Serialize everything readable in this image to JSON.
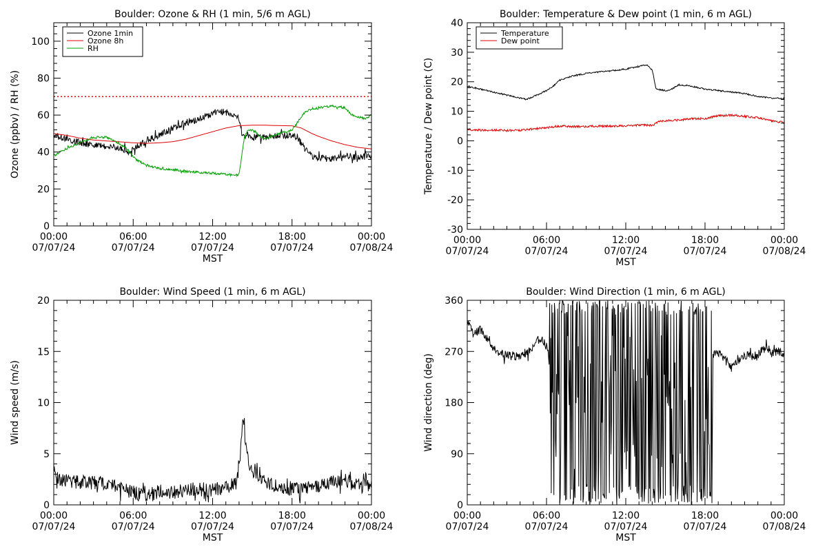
{
  "colors": {
    "black": "#000000",
    "red": "#e00000",
    "green": "#00a000",
    "background": "#ffffff"
  },
  "time_axis": {
    "ticks": [
      "00:00",
      "06:00",
      "12:00",
      "18:00",
      "00:00"
    ],
    "dates": [
      "07/07/24",
      "07/07/24",
      "07/07/24",
      "07/07/24",
      "07/08/24"
    ],
    "label": "MST"
  },
  "chart_data": [
    {
      "type": "line",
      "title": "Boulder: Ozone & RH (1 min, 5/6 m AGL)",
      "xlabel": "MST",
      "ylabel": "Ozone (ppbv) / RH (%)",
      "xlim_hours": [
        0,
        24
      ],
      "ylim": [
        0,
        110
      ],
      "yticks": [
        0,
        20,
        40,
        60,
        80,
        100
      ],
      "legend_position": "top-left",
      "reference_line": {
        "value": 70,
        "style": "dotted",
        "color": "#e00000"
      },
      "series": [
        {
          "name": "Ozone 1min",
          "color": "#000000",
          "noise": 1.8,
          "points": [
            [
              0,
              49
            ],
            [
              1,
              47
            ],
            [
              2,
              45
            ],
            [
              3,
              44
            ],
            [
              4,
              43
            ],
            [
              5,
              42
            ],
            [
              5.8,
              40
            ],
            [
              6.5,
              44
            ],
            [
              7,
              46
            ],
            [
              8,
              49
            ],
            [
              9,
              53
            ],
            [
              10,
              56
            ],
            [
              11,
              58
            ],
            [
              12,
              61
            ],
            [
              12.6,
              62
            ],
            [
              13,
              61.5
            ],
            [
              13.5,
              61
            ],
            [
              14,
              58
            ],
            [
              14.2,
              49
            ],
            [
              15,
              48
            ],
            [
              16,
              48
            ],
            [
              17,
              49
            ],
            [
              18,
              49
            ],
            [
              18.5,
              47
            ],
            [
              19,
              41
            ],
            [
              19.5,
              38
            ],
            [
              20,
              37
            ],
            [
              21,
              36
            ],
            [
              22,
              38
            ],
            [
              23,
              37
            ],
            [
              23.5,
              38
            ],
            [
              24,
              37
            ]
          ]
        },
        {
          "name": "Ozone 8h",
          "color": "#e00000",
          "noise": 0,
          "points": [
            [
              0,
              50
            ],
            [
              1,
              49
            ],
            [
              2,
              47.5
            ],
            [
              3,
              46.5
            ],
            [
              4,
              46
            ],
            [
              5,
              45.5
            ],
            [
              6,
              45
            ],
            [
              7,
              44.7
            ],
            [
              8,
              45
            ],
            [
              9,
              45.6
            ],
            [
              10,
              47
            ],
            [
              11,
              49
            ],
            [
              12,
              51
            ],
            [
              13,
              53
            ],
            [
              14,
              54.3
            ],
            [
              15,
              54.5
            ],
            [
              16,
              54.5
            ],
            [
              17,
              54.3
            ],
            [
              18,
              54.2
            ],
            [
              18.7,
              53
            ],
            [
              19.5,
              50
            ],
            [
              20,
              48.5
            ],
            [
              21,
              46
            ],
            [
              22,
              44
            ],
            [
              23,
              42.5
            ],
            [
              24,
              41.7
            ]
          ]
        },
        {
          "name": "RH",
          "color": "#00a000",
          "noise": 0.6,
          "points": [
            [
              0,
              38
            ],
            [
              1,
              42
            ],
            [
              2,
              45
            ],
            [
              3,
              48
            ],
            [
              4,
              48
            ],
            [
              4.8,
              45
            ],
            [
              5.5,
              42
            ],
            [
              6.2,
              36
            ],
            [
              7,
              33
            ],
            [
              8,
              31
            ],
            [
              9,
              30.5
            ],
            [
              10,
              29.5
            ],
            [
              11,
              29
            ],
            [
              12,
              28.5
            ],
            [
              13,
              28
            ],
            [
              13.5,
              27.5
            ],
            [
              14,
              28
            ],
            [
              14.4,
              48
            ],
            [
              14.7,
              52
            ],
            [
              15,
              52
            ],
            [
              15.5,
              49
            ],
            [
              16,
              47
            ],
            [
              17,
              50
            ],
            [
              18,
              52
            ],
            [
              18.4,
              56
            ],
            [
              19,
              62
            ],
            [
              20,
              64
            ],
            [
              21,
              65
            ],
            [
              22,
              64
            ],
            [
              22.5,
              60
            ],
            [
              23,
              59
            ],
            [
              23.5,
              58
            ],
            [
              24,
              60
            ]
          ]
        }
      ]
    },
    {
      "type": "line",
      "title": "Boulder: Temperature & Dew point (1 min, 6 m AGL)",
      "xlabel": "MST",
      "ylabel": "Temperature / Dew point (C)",
      "xlim_hours": [
        0,
        24
      ],
      "ylim": [
        -30,
        40
      ],
      "yticks": [
        -30,
        -20,
        -10,
        0,
        10,
        20,
        30,
        40
      ],
      "legend_position": "top-left",
      "series": [
        {
          "name": "Temperature",
          "color": "#000000",
          "noise": 0.25,
          "points": [
            [
              0,
              18.5
            ],
            [
              1,
              17.5
            ],
            [
              2,
              16.5
            ],
            [
              3,
              15.5
            ],
            [
              4,
              14.5
            ],
            [
              4.5,
              14
            ],
            [
              5,
              15
            ],
            [
              5.5,
              16
            ],
            [
              6,
              17
            ],
            [
              6.5,
              18.5
            ],
            [
              7,
              20.5
            ],
            [
              8,
              22
            ],
            [
              9,
              22.8
            ],
            [
              10,
              23.3
            ],
            [
              11,
              23.8
            ],
            [
              12,
              24.3
            ],
            [
              13,
              25.2
            ],
            [
              13.6,
              25.8
            ],
            [
              14,
              24
            ],
            [
              14.3,
              17.5
            ],
            [
              15,
              17
            ],
            [
              15.5,
              17.5
            ],
            [
              16,
              19
            ],
            [
              17,
              18.5
            ],
            [
              18,
              17.5
            ],
            [
              19,
              17
            ],
            [
              20,
              16.5
            ],
            [
              21,
              16
            ],
            [
              22,
              15
            ],
            [
              23,
              14.5
            ],
            [
              24,
              14.3
            ]
          ]
        },
        {
          "name": "Dew point",
          "color": "#e00000",
          "noise": 0.35,
          "points": [
            [
              0,
              3.8
            ],
            [
              1,
              3.6
            ],
            [
              2,
              3.6
            ],
            [
              3,
              3.5
            ],
            [
              4,
              3.6
            ],
            [
              5,
              4
            ],
            [
              6,
              4.5
            ],
            [
              7,
              5
            ],
            [
              8,
              4.8
            ],
            [
              9,
              4.8
            ],
            [
              10,
              5
            ],
            [
              11,
              5
            ],
            [
              12,
              5
            ],
            [
              13,
              5.3
            ],
            [
              14,
              5.2
            ],
            [
              14.5,
              6.5
            ],
            [
              15,
              6.8
            ],
            [
              16,
              7
            ],
            [
              17,
              7.5
            ],
            [
              18,
              7.5
            ],
            [
              19,
              8.5
            ],
            [
              20,
              8.7
            ],
            [
              21,
              8.3
            ],
            [
              22,
              7.8
            ],
            [
              23,
              6.8
            ],
            [
              24,
              6.2
            ]
          ]
        }
      ]
    },
    {
      "type": "line",
      "title": "Boulder: Wind Speed (1 min, 6 m AGL)",
      "xlabel": "MST",
      "ylabel": "Wind speed (m/s)",
      "xlim_hours": [
        0,
        24
      ],
      "ylim": [
        0,
        20
      ],
      "yticks": [
        0,
        5,
        10,
        15,
        20
      ],
      "series": [
        {
          "name": "",
          "color": "#000000",
          "noise": 0.7,
          "points": [
            [
              0,
              3.5
            ],
            [
              0.5,
              2.5
            ],
            [
              1,
              2.3
            ],
            [
              2,
              2.2
            ],
            [
              3,
              2.2
            ],
            [
              4,
              2.1
            ],
            [
              5,
              1.8
            ],
            [
              6,
              1.2
            ],
            [
              7,
              0.8
            ],
            [
              8,
              1.4
            ],
            [
              9,
              1.2
            ],
            [
              10,
              1.5
            ],
            [
              11,
              1.5
            ],
            [
              12,
              1.5
            ],
            [
              13,
              1.6
            ],
            [
              13.8,
              2.2
            ],
            [
              14,
              4
            ],
            [
              14.3,
              8
            ],
            [
              14.5,
              6
            ],
            [
              14.8,
              4
            ],
            [
              15,
              3
            ],
            [
              16,
              2.2
            ],
            [
              17,
              1.8
            ],
            [
              18,
              1.6
            ],
            [
              19,
              1.6
            ],
            [
              20,
              1.8
            ],
            [
              21,
              2.2
            ],
            [
              22,
              2.4
            ],
            [
              23,
              2
            ],
            [
              24,
              1.8
            ]
          ]
        }
      ]
    },
    {
      "type": "line",
      "title": "Boulder: Wind Direction (1 min, 6 m AGL)",
      "xlabel": "MST",
      "ylabel": "Wind direction (deg)",
      "xlim_hours": [
        0,
        24
      ],
      "ylim": [
        0,
        360
      ],
      "yticks": [
        0,
        90,
        180,
        270,
        360
      ],
      "series": [
        {
          "name": "",
          "color": "#000000",
          "noise": 8,
          "oscillating_range_hours": [
            6.2,
            18.6
          ],
          "points": [
            [
              0,
              320
            ],
            [
              0.5,
              300
            ],
            [
              1,
              310
            ],
            [
              2,
              275
            ],
            [
              3,
              262
            ],
            [
              4,
              262
            ],
            [
              5,
              275
            ],
            [
              5.5,
              295
            ],
            [
              6,
              280
            ],
            [
              6.2,
              260
            ],
            [
              18.6,
              265
            ],
            [
              19,
              270
            ],
            [
              19.5,
              255
            ],
            [
              20,
              245
            ],
            [
              21,
              262
            ],
            [
              22,
              262
            ],
            [
              22.5,
              280
            ],
            [
              23,
              265
            ],
            [
              23.5,
              270
            ],
            [
              24,
              265
            ]
          ]
        }
      ]
    }
  ]
}
